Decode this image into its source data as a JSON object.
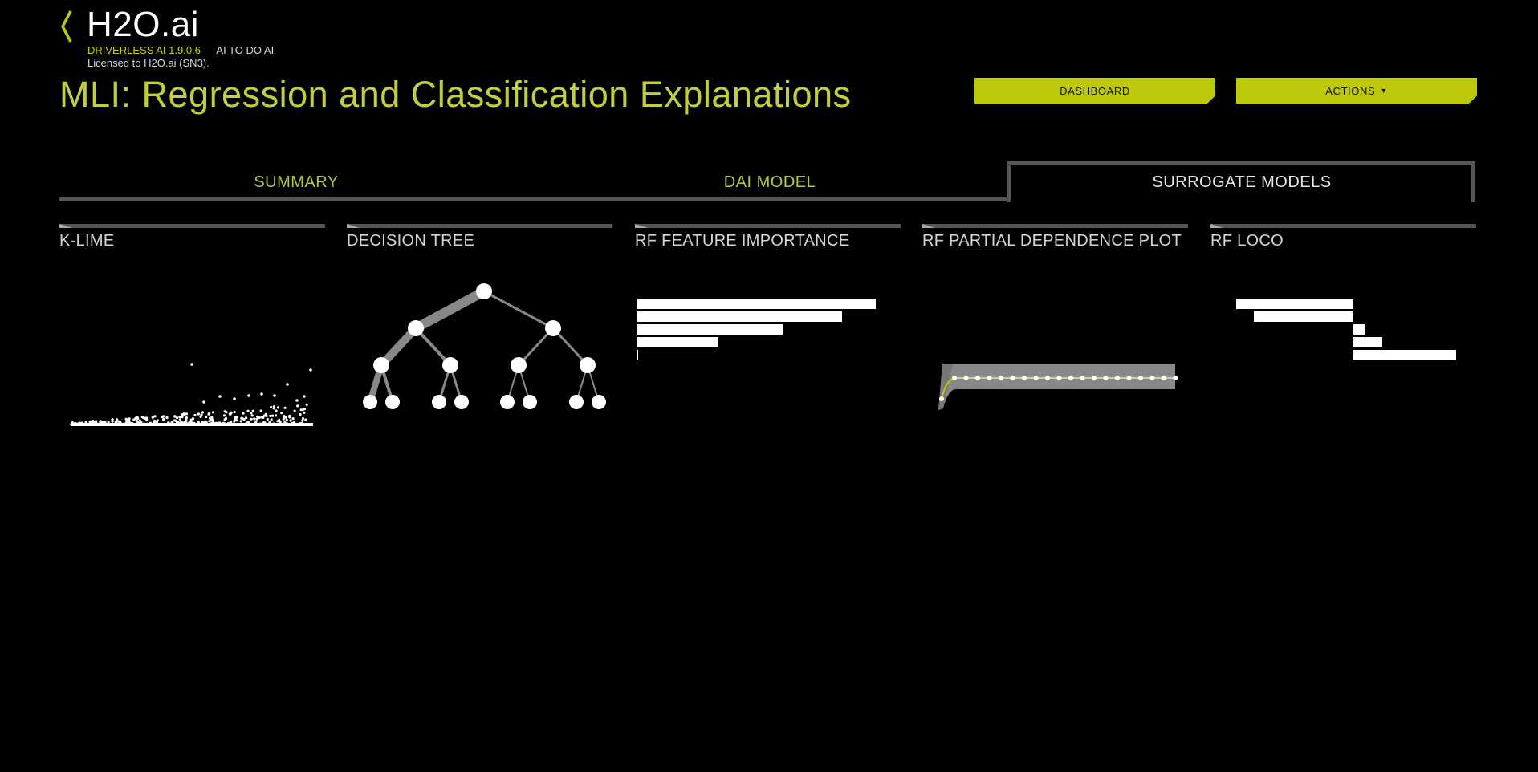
{
  "brand": {
    "logo": "H2O.ai",
    "version": "DRIVERLESS AI 1.9.0.6",
    "tagline": " — AI TO DO AI",
    "license": "Licensed to H2O.ai (SN3)."
  },
  "page": {
    "title": "MLI: Regression and Classification Explanations"
  },
  "buttons": {
    "dashboard": "DASHBOARD",
    "actions": "ACTIONS"
  },
  "tabs": [
    {
      "label": "SUMMARY",
      "active": false
    },
    {
      "label": "DAI MODEL",
      "active": false
    },
    {
      "label": "SURROGATE MODELS",
      "active": true
    }
  ],
  "cards": [
    {
      "title": "K-LIME"
    },
    {
      "title": "DECISION TREE"
    },
    {
      "title": "RF FEATURE IMPORTANCE"
    },
    {
      "title": "RF PARTIAL DEPENDENCE PLOT"
    },
    {
      "title": "RF LOCO"
    }
  ],
  "colors": {
    "accent": "#bcc90a",
    "title": "#c3cf3a",
    "background": "#000000",
    "muted": "#555555"
  },
  "icons": {
    "back": "chevron-left-icon"
  }
}
